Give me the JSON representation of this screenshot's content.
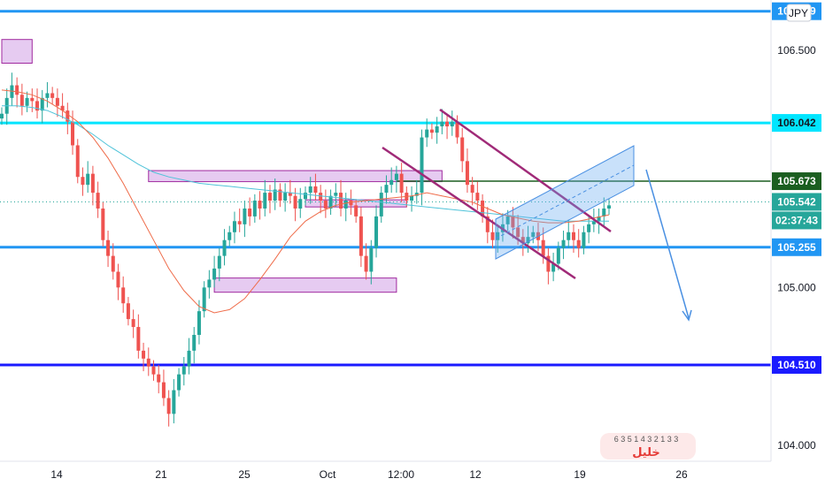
{
  "chart_data": {
    "type": "candlestick",
    "symbol_badge": "JPY",
    "y_range": [
      103.9,
      106.82
    ],
    "x_tick_labels": [
      "14",
      "21",
      "25",
      "Oct",
      "12:00",
      "12",
      "19",
      "26"
    ],
    "y_tick_labels": [
      "106.500",
      "105.000",
      "104.000"
    ],
    "price_labels": [
      {
        "value": 106.042,
        "text": "106.042",
        "role": "resistance-line"
      },
      {
        "value": 105.673,
        "text": "105.673",
        "role": "dark-line"
      },
      {
        "value": 105.542,
        "text": "105.542",
        "role": "last-price"
      },
      {
        "value": null,
        "text": "02:37:43",
        "role": "countdown"
      },
      {
        "value": 105.255,
        "text": "105.255",
        "role": "support-line"
      },
      {
        "value": 104.51,
        "text": "104.510",
        "role": "target-line"
      }
    ],
    "top_line_label": "106.749",
    "horizontal_lines": [
      {
        "value": 106.749,
        "color": "#2196f3"
      },
      {
        "value": 106.042,
        "color": "#00e5ff"
      },
      {
        "value": 105.255,
        "color": "#2196f3"
      },
      {
        "value": 104.51,
        "color": "#1a1aff"
      },
      {
        "value": 105.673,
        "color": "#1b5e20"
      }
    ],
    "zones": [
      {
        "x_from": 0,
        "x_to": 6,
        "y_low": 106.42,
        "y_high": 106.57
      },
      {
        "x_from": 29,
        "x_to": 87,
        "y_low": 105.67,
        "y_high": 105.74
      },
      {
        "x_from": 42,
        "x_to": 78,
        "y_low": 104.97,
        "y_high": 105.06
      },
      {
        "x_from": 60,
        "x_to": 80,
        "y_low": 105.51,
        "y_high": 105.555
      }
    ],
    "closes": [
      106.1,
      106.2,
      106.28,
      106.22,
      106.15,
      106.2,
      106.18,
      106.12,
      106.2,
      106.23,
      106.2,
      106.15,
      106.12,
      106.05,
      105.9,
      105.7,
      105.65,
      105.72,
      105.6,
      105.5,
      105.3,
      105.2,
      105.1,
      105,
      104.9,
      104.8,
      104.75,
      104.6,
      104.55,
      104.5,
      104.45,
      104.4,
      104.3,
      104.2,
      104.35,
      104.45,
      104.5,
      104.6,
      104.7,
      104.85,
      105,
      105.05,
      105.12,
      105.2,
      105.3,
      105.35,
      105.42,
      105.4,
      105.5,
      105.45,
      105.55,
      105.5,
      105.6,
      105.55,
      105.62,
      105.55,
      105.6,
      105.58,
      105.5,
      105.56,
      105.6,
      105.64,
      105.6,
      105.55,
      105.5,
      105.58,
      105.6,
      105.5,
      105.55,
      105.52,
      105.45,
      105.2,
      105.1,
      105.25,
      105.45,
      105.6,
      105.65,
      105.68,
      105.72,
      105.6,
      105.55,
      105.58,
      105.6,
      105.95,
      106,
      105.98,
      106.02,
      106.05,
      106.02,
      106.05,
      105.95,
      105.8,
      105.65,
      105.6,
      105.55,
      105.45,
      105.35,
      105.3,
      105.35,
      105.4,
      105.45,
      105.38,
      105.32,
      105.28,
      105.32,
      105.35,
      105.3,
      105.2,
      105.1,
      105.15,
      105.25,
      105.3,
      105.35,
      105.3,
      105.25,
      105.35,
      105.4,
      105.42,
      105.45,
      105.5,
      105.52
    ],
    "ma_fast": [
      106.25,
      106.24,
      106.22,
      106.18,
      106.12,
      106.05,
      105.95,
      105.82,
      105.66,
      105.48,
      105.3,
      105.12,
      104.98,
      104.88,
      104.84,
      104.86,
      104.93,
      105.05,
      105.18,
      105.32,
      105.42,
      105.48,
      105.52,
      105.54,
      105.55,
      105.56,
      105.57,
      105.58,
      105.6,
      105.58,
      105.56,
      105.54,
      105.5,
      105.46,
      105.44,
      105.42,
      105.41,
      105.41,
      105.42,
      105.44,
      105.46
    ],
    "ma_slow": [
      106.15,
      106.15,
      106.14,
      106.12,
      106.08,
      106.03,
      105.97,
      105.9,
      105.84,
      105.78,
      105.73,
      105.7,
      105.68,
      105.66,
      105.65,
      105.64,
      105.63,
      105.62,
      105.61,
      105.6,
      105.59,
      105.58,
      105.57,
      105.56,
      105.55,
      105.54,
      105.53,
      105.52,
      105.51,
      105.5,
      105.49,
      105.48,
      105.47,
      105.46,
      105.45,
      105.44,
      105.43,
      105.42,
      105.42,
      105.42,
      105.42
    ],
    "ma_colors": {
      "fast": "#ef6c4a",
      "slow": "#4fc3d9"
    },
    "candle_colors": {
      "up": "#26a69a",
      "down": "#ef5350"
    },
    "bottom_badge": "63 514 32 133",
    "bottom_badge_lines": [
      "6 3  5 1 4  3 2    1 3 3",
      "خلیل"
    ]
  }
}
